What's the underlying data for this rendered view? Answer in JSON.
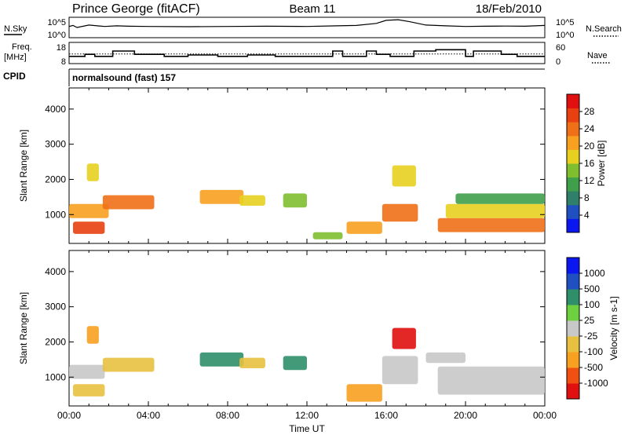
{
  "header": {
    "station": "Prince George (fitACF)",
    "beam": "Beam 11",
    "date": "18/Feb/2010"
  },
  "sky_panel": {
    "label": "N.Sky",
    "left_ticks": [
      "10^5",
      "10^0"
    ],
    "right_ticks": [
      "10^5",
      "10^0"
    ],
    "right_label": "N.Search",
    "series": [
      {
        "t": 0.0,
        "v": 0.55
      },
      {
        "t": 0.2,
        "v": 0.6
      },
      {
        "t": 0.4,
        "v": 0.5
      },
      {
        "t": 1.0,
        "v": 0.62
      },
      {
        "t": 1.8,
        "v": 0.55
      },
      {
        "t": 2.4,
        "v": 0.58
      },
      {
        "t": 3.0,
        "v": 0.56
      },
      {
        "t": 4.0,
        "v": 0.55
      },
      {
        "t": 6.0,
        "v": 0.54
      },
      {
        "t": 8.0,
        "v": 0.55
      },
      {
        "t": 10.0,
        "v": 0.56
      },
      {
        "t": 12.0,
        "v": 0.55
      },
      {
        "t": 13.5,
        "v": 0.58
      },
      {
        "t": 14.5,
        "v": 0.6
      },
      {
        "t": 15.5,
        "v": 0.7
      },
      {
        "t": 16.0,
        "v": 0.85
      },
      {
        "t": 16.6,
        "v": 0.88
      },
      {
        "t": 17.2,
        "v": 0.78
      },
      {
        "t": 18.0,
        "v": 0.62
      },
      {
        "t": 19.0,
        "v": 0.58
      },
      {
        "t": 20.0,
        "v": 0.55
      },
      {
        "t": 21.0,
        "v": 0.56
      },
      {
        "t": 22.0,
        "v": 0.57
      },
      {
        "t": 23.0,
        "v": 0.56
      },
      {
        "t": 24.0,
        "v": 0.6
      }
    ]
  },
  "freq_panel": {
    "label_line1": "Freq.",
    "label_line2": "[MHz]",
    "left_ticks": [
      "18",
      "8"
    ],
    "right_ticks": [
      "60",
      "0"
    ],
    "right_label": "Nave",
    "steps": [
      {
        "t": 0.0,
        "f": 10.5
      },
      {
        "t": 0.8,
        "f": 12.0
      },
      {
        "t": 1.3,
        "f": 10.5
      },
      {
        "t": 2.2,
        "f": 14.5
      },
      {
        "t": 3.3,
        "f": 12.0
      },
      {
        "t": 4.8,
        "f": 10.5
      },
      {
        "t": 6.0,
        "f": 11.5
      },
      {
        "t": 7.5,
        "f": 10.5
      },
      {
        "t": 9.0,
        "f": 11.5
      },
      {
        "t": 10.4,
        "f": 10.5
      },
      {
        "t": 13.3,
        "f": 14.5
      },
      {
        "t": 13.8,
        "f": 10.5
      },
      {
        "t": 15.0,
        "f": 14.5
      },
      {
        "t": 15.5,
        "f": 12.0
      },
      {
        "t": 16.2,
        "f": 10.5
      },
      {
        "t": 17.4,
        "f": 14.5
      },
      {
        "t": 18.5,
        "f": 15.5
      },
      {
        "t": 20.0,
        "f": 10.5
      },
      {
        "t": 20.4,
        "f": 14.5
      },
      {
        "t": 21.8,
        "f": 12.0
      },
      {
        "t": 22.6,
        "f": 10.5
      },
      {
        "t": 24.0,
        "f": 10.5
      }
    ],
    "nave_level": 12.3
  },
  "cpid": {
    "label": "CPID",
    "program": "normalsound (fast) 157"
  },
  "chart_data": [
    {
      "type": "heatmap",
      "title": "",
      "xlabel": "",
      "ylabel": "Slant Range [km]",
      "xlim": [
        0,
        24
      ],
      "ylim": [
        180,
        4600
      ],
      "yticks": [
        "1000",
        "2000",
        "3000",
        "4000"
      ],
      "colorbar": {
        "label": "Power [dB]",
        "ticks": [
          "4",
          "8",
          "12",
          "16",
          "20",
          "24",
          "28"
        ],
        "colors": [
          "#0a17f0",
          "#1f4fc0",
          "#2f7f6a",
          "#3f9f4a",
          "#7fbf2f",
          "#e8d020",
          "#f8a020",
          "#f07018",
          "#e84010",
          "#e01010"
        ]
      },
      "blobs": [
        {
          "t0": 0.2,
          "t1": 1.8,
          "r0": 450,
          "r1": 800,
          "level": 8
        },
        {
          "t0": 0.0,
          "t1": 2.0,
          "r0": 900,
          "r1": 1300,
          "level": 6
        },
        {
          "t0": 1.7,
          "t1": 4.3,
          "r0": 1150,
          "r1": 1550,
          "level": 7
        },
        {
          "t0": 0.9,
          "t1": 1.5,
          "r0": 1950,
          "r1": 2450,
          "level": 5
        },
        {
          "t0": 6.6,
          "t1": 8.8,
          "r0": 1300,
          "r1": 1700,
          "level": 6
        },
        {
          "t0": 8.6,
          "t1": 9.9,
          "r0": 1250,
          "r1": 1550,
          "level": 5
        },
        {
          "t0": 10.8,
          "t1": 12.0,
          "r0": 1200,
          "r1": 1600,
          "level": 4
        },
        {
          "t0": 12.3,
          "t1": 13.8,
          "r0": 300,
          "r1": 500,
          "level": 4
        },
        {
          "t0": 14.0,
          "t1": 15.8,
          "r0": 450,
          "r1": 800,
          "level": 6
        },
        {
          "t0": 15.8,
          "t1": 17.6,
          "r0": 800,
          "r1": 1300,
          "level": 7
        },
        {
          "t0": 16.3,
          "t1": 17.5,
          "r0": 1800,
          "r1": 2400,
          "level": 5
        },
        {
          "t0": 18.6,
          "t1": 24.0,
          "r0": 500,
          "r1": 900,
          "level": 7
        },
        {
          "t0": 19.0,
          "t1": 24.0,
          "r0": 900,
          "r1": 1300,
          "level": 5
        },
        {
          "t0": 19.5,
          "t1": 24.0,
          "r0": 1300,
          "r1": 1600,
          "level": 3
        }
      ]
    },
    {
      "type": "heatmap",
      "title": "",
      "xlabel": "Time UT",
      "ylabel": "Slant Range [km]",
      "xlim": [
        0,
        24
      ],
      "ylim": [
        180,
        4600
      ],
      "xticks": [
        "00:00",
        "04:00",
        "08:00",
        "12:00",
        "16:00",
        "20:00",
        "00:00"
      ],
      "yticks": [
        "1000",
        "2000",
        "3000",
        "4000"
      ],
      "colorbar": {
        "label": "Velocity [m s-1]",
        "ticks": [
          "-1000",
          "-500",
          "-100",
          "-25",
          "25",
          "100",
          "500",
          "1000"
        ],
        "colors": [
          "#e01010",
          "#f05010",
          "#f8a020",
          "#e8c040",
          "#c8c8c8",
          "#6fd03f",
          "#2f8f6a",
          "#1f4fc0",
          "#0a17f0"
        ]
      },
      "blobs": [
        {
          "t0": 0.0,
          "t1": 1.8,
          "r0": 950,
          "r1": 1350,
          "level": 4
        },
        {
          "t0": 0.2,
          "t1": 1.8,
          "r0": 450,
          "r1": 800,
          "level": 3
        },
        {
          "t0": 1.7,
          "t1": 4.3,
          "r0": 1150,
          "r1": 1550,
          "level": 3
        },
        {
          "t0": 0.9,
          "t1": 1.5,
          "r0": 1950,
          "r1": 2450,
          "level": 2
        },
        {
          "t0": 6.6,
          "t1": 8.8,
          "r0": 1300,
          "r1": 1700,
          "level": 6
        },
        {
          "t0": 8.6,
          "t1": 9.9,
          "r0": 1250,
          "r1": 1550,
          "level": 3
        },
        {
          "t0": 10.8,
          "t1": 12.0,
          "r0": 1200,
          "r1": 1600,
          "level": 6
        },
        {
          "t0": 14.0,
          "t1": 15.8,
          "r0": 300,
          "r1": 800,
          "level": 2
        },
        {
          "t0": 15.8,
          "t1": 17.6,
          "r0": 800,
          "r1": 1600,
          "level": 4
        },
        {
          "t0": 16.3,
          "t1": 17.5,
          "r0": 1800,
          "r1": 2400,
          "level": 0
        },
        {
          "t0": 18.6,
          "t1": 24.0,
          "r0": 500,
          "r1": 1300,
          "level": 4
        },
        {
          "t0": 18.0,
          "t1": 20.0,
          "r0": 1400,
          "r1": 1700,
          "level": 4
        }
      ]
    }
  ]
}
